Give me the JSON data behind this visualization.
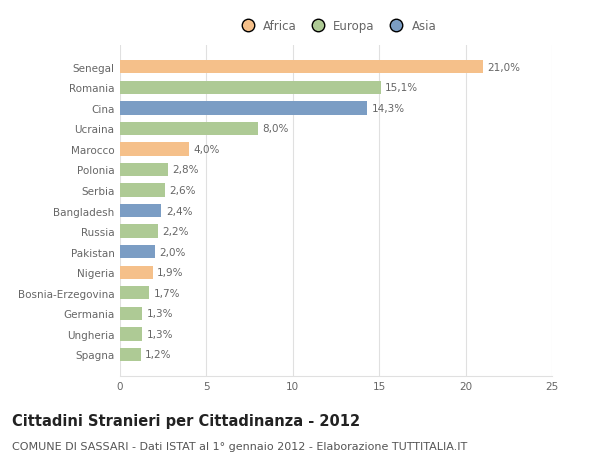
{
  "countries": [
    "Spagna",
    "Ungheria",
    "Germania",
    "Bosnia-Erzegovina",
    "Nigeria",
    "Pakistan",
    "Russia",
    "Bangladesh",
    "Serbia",
    "Polonia",
    "Marocco",
    "Ucraina",
    "Cina",
    "Romania",
    "Senegal"
  ],
  "values": [
    1.2,
    1.3,
    1.3,
    1.7,
    1.9,
    2.0,
    2.2,
    2.4,
    2.6,
    2.8,
    4.0,
    8.0,
    14.3,
    15.1,
    21.0
  ],
  "labels": [
    "1,2%",
    "1,3%",
    "1,3%",
    "1,7%",
    "1,9%",
    "2,0%",
    "2,2%",
    "2,4%",
    "2,6%",
    "2,8%",
    "4,0%",
    "8,0%",
    "14,3%",
    "15,1%",
    "21,0%"
  ],
  "continents": [
    "Europa",
    "Europa",
    "Europa",
    "Europa",
    "Africa",
    "Asia",
    "Europa",
    "Asia",
    "Europa",
    "Europa",
    "Africa",
    "Europa",
    "Asia",
    "Europa",
    "Africa"
  ],
  "colors": {
    "Africa": "#F5C08A",
    "Europa": "#AECA95",
    "Asia": "#7B9DC4"
  },
  "legend_labels": [
    "Africa",
    "Europa",
    "Asia"
  ],
  "legend_colors": [
    "#F5C08A",
    "#AECA95",
    "#7B9DC4"
  ],
  "title": "Cittadini Stranieri per Cittadinanza - 2012",
  "subtitle": "COMUNE DI SASSARI - Dati ISTAT al 1° gennaio 2012 - Elaborazione TUTTITALIA.IT",
  "xlim": [
    0,
    25
  ],
  "xticks": [
    0,
    5,
    10,
    15,
    20,
    25
  ],
  "background_color": "#ffffff",
  "plot_background": "#ffffff",
  "grid_color": "#e0e0e0",
  "title_fontsize": 10.5,
  "subtitle_fontsize": 8,
  "label_fontsize": 7.5,
  "tick_fontsize": 7.5,
  "legend_fontsize": 8.5
}
